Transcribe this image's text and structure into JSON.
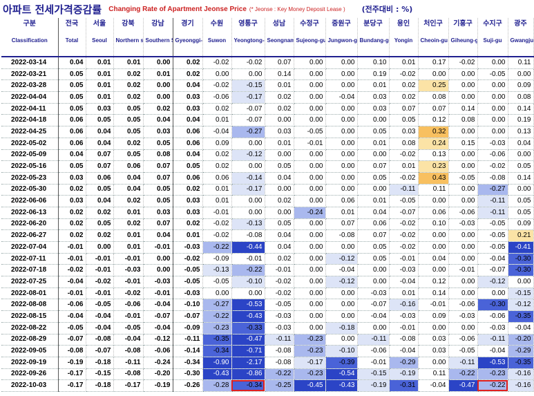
{
  "title": {
    "ko": "아파트 전세가격증감률",
    "en": "Changing Rate of Apartment Jeonse Price",
    "note": "(* Jeonse : Key Money Deposit Lease )",
    "unit": "(전주대비 : %)"
  },
  "columns": [
    {
      "ko": "구분",
      "en": "Classification"
    },
    {
      "ko": "전국",
      "en": "Total"
    },
    {
      "ko": "서울",
      "en": "Seoul"
    },
    {
      "ko": "강북",
      "en": "Northern seoul"
    },
    {
      "ko": "강남",
      "en": "Southern Seoul"
    },
    {
      "ko": "경기",
      "en": "Gyeonggi-do"
    },
    {
      "ko": "수원",
      "en": "Suwon"
    },
    {
      "ko": "영통구",
      "en": "Yeongtong-gu"
    },
    {
      "ko": "성남",
      "en": "Seongnam"
    },
    {
      "ko": "수정구",
      "en": "Sujeong-gu"
    },
    {
      "ko": "중원구",
      "en": "Jungwon-gu"
    },
    {
      "ko": "분당구",
      "en": "Bundang-gu"
    },
    {
      "ko": "용인",
      "en": "Yongin"
    },
    {
      "ko": "처인구",
      "en": "Cheoin-gu"
    },
    {
      "ko": "기흥구",
      "en": "Giheung-gu"
    },
    {
      "ko": "수지구",
      "en": "Suji-gu"
    },
    {
      "ko": "광주",
      "en": "Gwangju"
    }
  ],
  "rows": [
    [
      "2022-03-14",
      "0.04",
      "0.01",
      "0.01",
      "0.00",
      "0.02",
      "-0.02",
      "-0.02",
      "0.07",
      "0.00",
      "0.00",
      "0.10",
      "0.01",
      "0.17",
      "-0.02",
      "0.00",
      "0.11"
    ],
    [
      "2022-03-21",
      "0.05",
      "0.01",
      "0.02",
      "0.01",
      "0.02",
      "0.00",
      "0.00",
      "0.14",
      "0.00",
      "0.00",
      "0.19",
      "-0.02",
      "0.00",
      "0.00",
      "-0.05",
      "0.00"
    ],
    [
      "2022-03-28",
      "0.05",
      "0.01",
      "0.02",
      "0.00",
      "0.04",
      "-0.02",
      "-0.15",
      "0.01",
      "0.00",
      "0.00",
      "0.01",
      "0.02",
      "0.25",
      "0.00",
      "0.00",
      "0.09"
    ],
    [
      "2022-04-04",
      "0.05",
      "0.01",
      "0.02",
      "0.00",
      "0.03",
      "-0.06",
      "-0.17",
      "0.02",
      "0.00",
      "-0.04",
      "0.03",
      "0.02",
      "0.08",
      "0.00",
      "0.00",
      "0.08"
    ],
    [
      "2022-04-11",
      "0.05",
      "0.03",
      "0.05",
      "0.02",
      "0.03",
      "0.02",
      "-0.07",
      "0.02",
      "0.00",
      "0.00",
      "0.03",
      "0.07",
      "0.07",
      "0.14",
      "0.00",
      "0.14"
    ],
    [
      "2022-04-18",
      "0.06",
      "0.05",
      "0.05",
      "0.04",
      "0.04",
      "0.01",
      "-0.07",
      "0.00",
      "0.00",
      "0.00",
      "0.00",
      "0.05",
      "0.12",
      "0.08",
      "0.00",
      "0.19"
    ],
    [
      "2022-04-25",
      "0.06",
      "0.04",
      "0.05",
      "0.03",
      "0.06",
      "-0.04",
      "-0.27",
      "0.03",
      "-0.05",
      "0.00",
      "0.05",
      "0.03",
      "0.32",
      "0.00",
      "0.00",
      "0.13"
    ],
    [
      "2022-05-02",
      "0.06",
      "0.04",
      "0.02",
      "0.05",
      "0.06",
      "0.09",
      "0.00",
      "0.01",
      "-0.01",
      "0.00",
      "0.01",
      "0.08",
      "0.24",
      "0.15",
      "-0.03",
      "0.04"
    ],
    [
      "2022-05-09",
      "0.04",
      "0.07",
      "0.05",
      "0.08",
      "0.04",
      "0.02",
      "-0.12",
      "0.00",
      "0.00",
      "0.00",
      "0.00",
      "-0.02",
      "0.13",
      "0.00",
      "-0.06",
      "0.00"
    ],
    [
      "2022-05-16",
      "0.05",
      "0.07",
      "0.06",
      "0.07",
      "0.05",
      "0.02",
      "0.00",
      "0.05",
      "0.00",
      "0.00",
      "0.07",
      "0.01",
      "0.23",
      "0.00",
      "-0.02",
      "0.05"
    ],
    [
      "2022-05-23",
      "0.03",
      "0.06",
      "0.04",
      "0.07",
      "0.06",
      "0.06",
      "-0.14",
      "0.04",
      "0.00",
      "0.00",
      "0.05",
      "-0.02",
      "0.43",
      "-0.05",
      "-0.08",
      "0.14"
    ],
    [
      "2022-05-30",
      "0.02",
      "0.05",
      "0.04",
      "0.05",
      "0.02",
      "0.01",
      "-0.17",
      "0.00",
      "0.00",
      "0.00",
      "0.00",
      "-0.11",
      "0.11",
      "0.00",
      "-0.27",
      "0.00"
    ],
    [
      "2022-06-06",
      "0.03",
      "0.04",
      "0.02",
      "0.05",
      "0.03",
      "0.01",
      "0.00",
      "0.02",
      "0.00",
      "0.06",
      "0.01",
      "-0.05",
      "0.00",
      "0.00",
      "-0.11",
      "0.05"
    ],
    [
      "2022-06-13",
      "0.02",
      "0.02",
      "0.01",
      "0.03",
      "0.03",
      "-0.01",
      "0.00",
      "0.00",
      "-0.24",
      "0.01",
      "0.04",
      "-0.07",
      "0.06",
      "-0.06",
      "-0.11",
      "0.05"
    ],
    [
      "2022-06-20",
      "0.02",
      "0.05",
      "0.02",
      "0.07",
      "0.02",
      "-0.02",
      "-0.13",
      "0.05",
      "0.00",
      "0.07",
      "0.06",
      "-0.02",
      "0.10",
      "-0.03",
      "-0.05",
      "0.09"
    ],
    [
      "2022-06-27",
      "0.02",
      "0.02",
      "0.01",
      "0.04",
      "0.01",
      "-0.02",
      "-0.08",
      "0.04",
      "0.00",
      "-0.08",
      "0.07",
      "-0.02",
      "0.00",
      "0.00",
      "-0.05",
      "0.21"
    ],
    [
      "2022-07-04",
      "-0.01",
      "0.00",
      "0.01",
      "-0.01",
      "-0.03",
      "-0.22",
      "-0.44",
      "0.04",
      "0.00",
      "0.00",
      "0.05",
      "-0.02",
      "0.00",
      "0.00",
      "-0.05",
      "-0.41"
    ],
    [
      "2022-07-11",
      "-0.01",
      "-0.01",
      "-0.01",
      "0.00",
      "-0.02",
      "-0.09",
      "-0.01",
      "0.02",
      "0.00",
      "-0.12",
      "0.05",
      "-0.01",
      "0.04",
      "0.00",
      "-0.04",
      "-0.30"
    ],
    [
      "2022-07-18",
      "-0.02",
      "-0.01",
      "-0.03",
      "0.00",
      "-0.05",
      "-0.13",
      "-0.22",
      "-0.01",
      "0.00",
      "-0.04",
      "0.00",
      "-0.03",
      "0.00",
      "-0.01",
      "-0.07",
      "-0.30"
    ],
    [
      "2022-07-25",
      "-0.04",
      "-0.02",
      "-0.01",
      "-0.03",
      "-0.05",
      "-0.05",
      "-0.10",
      "-0.02",
      "0.00",
      "-0.12",
      "0.00",
      "-0.04",
      "0.12",
      "0.00",
      "-0.12",
      "0.00"
    ],
    [
      "2022-08-01",
      "-0.01",
      "-0.01",
      "-0.02",
      "-0.01",
      "-0.03",
      "0.00",
      "0.00",
      "-0.02",
      "0.00",
      "0.00",
      "-0.03",
      "0.01",
      "0.14",
      "0.00",
      "0.00",
      "-0.15"
    ],
    [
      "2022-08-08",
      "-0.06",
      "-0.05",
      "-0.06",
      "-0.04",
      "-0.10",
      "-0.27",
      "-0.53",
      "-0.05",
      "0.00",
      "0.00",
      "-0.07",
      "-0.16",
      "-0.01",
      "-0.06",
      "-0.30",
      "-0.12"
    ],
    [
      "2022-08-15",
      "-0.04",
      "-0.04",
      "-0.01",
      "-0.07",
      "-0.07",
      "-0.22",
      "-0.43",
      "-0.03",
      "0.00",
      "0.00",
      "-0.04",
      "-0.03",
      "0.09",
      "-0.03",
      "-0.06",
      "-0.35"
    ],
    [
      "2022-08-22",
      "-0.05",
      "-0.04",
      "-0.05",
      "-0.04",
      "-0.09",
      "-0.23",
      "-0.33",
      "-0.03",
      "0.00",
      "-0.18",
      "0.00",
      "-0.01",
      "0.00",
      "0.00",
      "-0.03",
      "-0.04"
    ],
    [
      "2022-08-29",
      "-0.07",
      "-0.08",
      "-0.04",
      "-0.12",
      "-0.11",
      "-0.35",
      "-0.47",
      "-0.11",
      "-0.23",
      "0.00",
      "-0.11",
      "-0.08",
      "0.03",
      "-0.06",
      "-0.11",
      "-0.20"
    ],
    [
      "2022-09-05",
      "-0.08",
      "-0.07",
      "-0.08",
      "-0.06",
      "-0.14",
      "-0.34",
      "-0.71",
      "-0.08",
      "-0.23",
      "-0.10",
      "-0.06",
      "-0.04",
      "0.03",
      "-0.05",
      "-0.04",
      "-0.29"
    ],
    [
      "2022-09-19",
      "-0.19",
      "-0.18",
      "-0.11",
      "-0.24",
      "-0.34",
      "-0.90",
      "-2.17",
      "-0.08",
      "-0.17",
      "-0.39",
      "-0.01",
      "-0.29",
      "0.00",
      "-0.11",
      "-0.53",
      "-0.35"
    ],
    [
      "2022-09-26",
      "-0.17",
      "-0.15",
      "-0.08",
      "-0.20",
      "-0.30",
      "-0.43",
      "-0.86",
      "-0.22",
      "-0.23",
      "-0.54",
      "-0.15",
      "-0.19",
      "0.11",
      "-0.22",
      "-0.23",
      "-0.16"
    ],
    [
      "2022-10-03",
      "-0.17",
      "-0.18",
      "-0.17",
      "-0.19",
      "-0.26",
      "-0.28",
      "-0.34",
      "-0.25",
      "-0.45",
      "-0.43",
      "-0.19",
      "-0.31",
      "-0.04",
      "-0.47",
      "-0.22",
      "-0.16"
    ]
  ],
  "highlight_colors": {
    "pos_light": "#fbe3a6",
    "pos_strong": "#f8c060",
    "neg_light": "#dde4f7",
    "neg_mid": "#a9b8ee",
    "neg_strong": "#4a63d8",
    "neg_deep": "#2b44c6",
    "box": "#e02020"
  },
  "boxed_cells": [
    [
      28,
      7
    ],
    [
      28,
      15
    ]
  ]
}
